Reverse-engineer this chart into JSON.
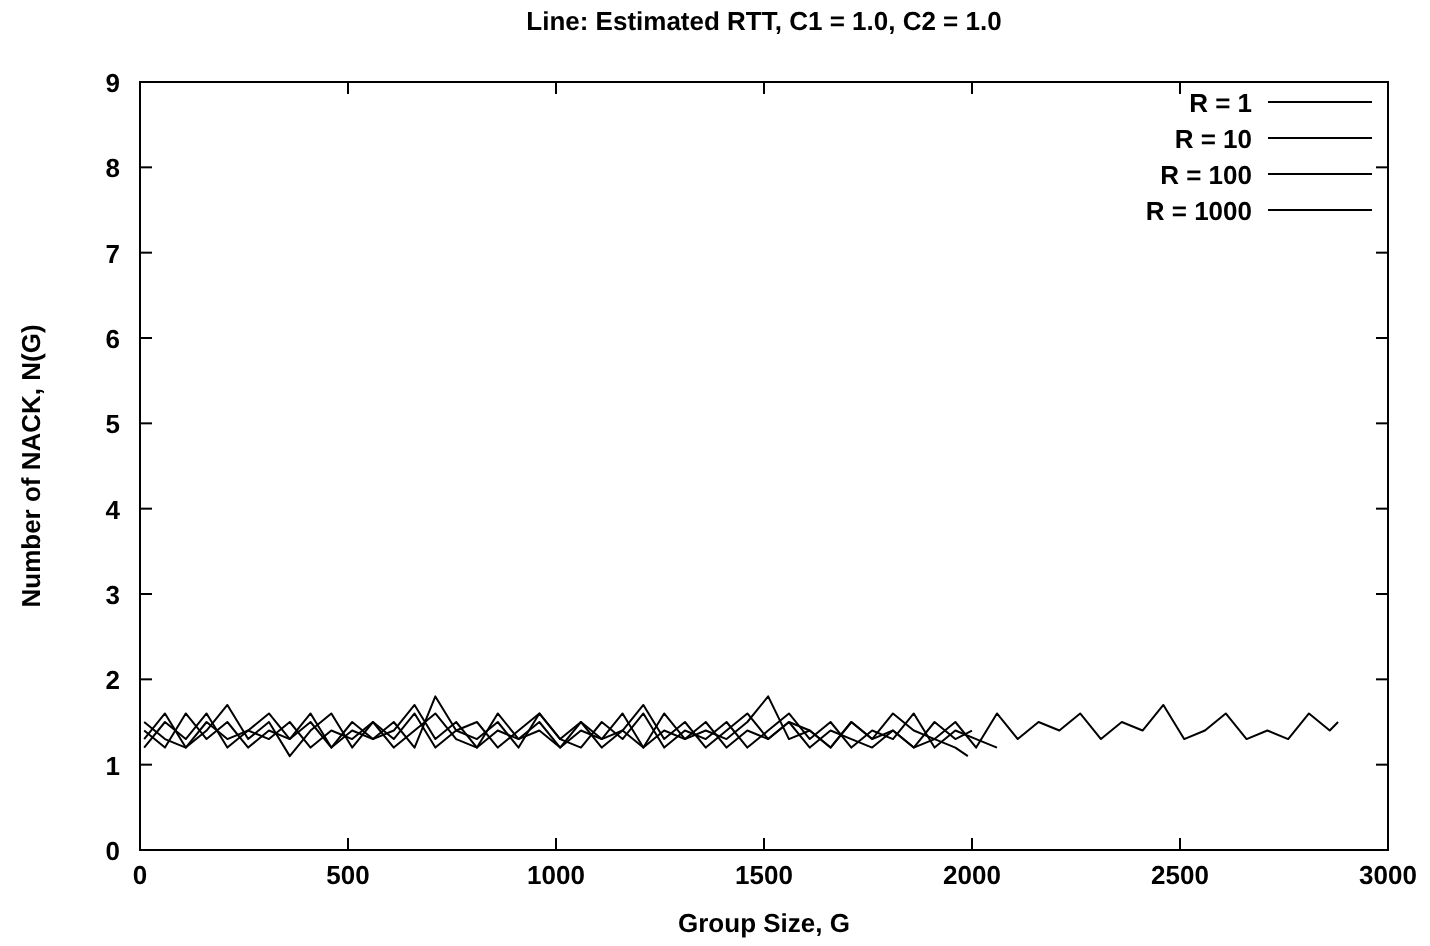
{
  "chart_data": {
    "type": "line",
    "title": "Line: Estimated RTT, C1 = 1.0, C2 = 1.0",
    "xlabel": "Group Size, G",
    "ylabel": "Number of NACK, N(G)",
    "xlim": [
      0,
      3000
    ],
    "xticks": [
      0,
      500,
      1000,
      1500,
      2000,
      2500,
      3000
    ],
    "ylim": [
      0,
      9
    ],
    "yticks": [
      0,
      1,
      2,
      3,
      4,
      5,
      6,
      7,
      8,
      9
    ],
    "grid": false,
    "legend": "top right",
    "marker": "none",
    "line_style": "solid",
    "series": [
      {
        "name": "R = 1",
        "color": "#000000",
        "x": [
          10,
          60,
          110,
          160,
          210,
          260,
          310,
          360,
          410,
          460,
          510,
          560,
          610,
          660,
          710,
          760,
          810,
          860,
          910,
          960,
          1010,
          1060,
          1110,
          1160,
          1210,
          1260,
          1310,
          1360,
          1410,
          1460,
          1510,
          1560,
          1610,
          1660,
          1710,
          1760,
          1810,
          1860,
          1910,
          1960,
          1990
        ],
        "values": [
          1.2,
          1.5,
          1.3,
          1.6,
          1.2,
          1.4,
          1.3,
          1.5,
          1.2,
          1.4,
          1.3,
          1.5,
          1.2,
          1.4,
          1.6,
          1.3,
          1.2,
          1.4,
          1.3,
          1.5,
          1.2,
          1.4,
          1.3,
          1.6,
          1.2,
          1.4,
          1.3,
          1.5,
          1.2,
          1.4,
          1.3,
          1.5,
          1.2,
          1.4,
          1.3,
          1.2,
          1.4,
          1.2,
          1.3,
          1.2,
          1.1
        ]
      },
      {
        "name": "R = 10",
        "color": "#000000",
        "x": [
          10,
          60,
          110,
          160,
          210,
          260,
          310,
          360,
          410,
          460,
          510,
          560,
          610,
          660,
          710,
          760,
          810,
          860,
          910,
          960,
          1010,
          1060,
          1110,
          1160,
          1210,
          1260,
          1310,
          1360,
          1410,
          1460,
          1510,
          1560,
          1610,
          1660,
          1710,
          1760,
          1810,
          1860,
          1910,
          1960,
          2000
        ],
        "values": [
          1.4,
          1.2,
          1.6,
          1.3,
          1.5,
          1.2,
          1.4,
          1.3,
          1.6,
          1.2,
          1.5,
          1.3,
          1.4,
          1.7,
          1.3,
          1.5,
          1.2,
          1.6,
          1.3,
          1.4,
          1.2,
          1.5,
          1.3,
          1.4,
          1.2,
          1.6,
          1.3,
          1.4,
          1.3,
          1.5,
          1.8,
          1.3,
          1.4,
          1.2,
          1.5,
          1.3,
          1.4,
          1.2,
          1.5,
          1.3,
          1.4
        ]
      },
      {
        "name": "R = 100",
        "color": "#000000",
        "x": [
          10,
          60,
          110,
          160,
          210,
          260,
          310,
          360,
          410,
          460,
          510,
          560,
          610,
          660,
          710,
          760,
          810,
          860,
          910,
          960,
          1010,
          1060,
          1110,
          1160,
          1210,
          1260,
          1310,
          1360,
          1410,
          1460,
          1510,
          1560,
          1610,
          1660,
          1710,
          1760,
          1810,
          1860,
          1910,
          1960,
          2010,
          2060
        ],
        "values": [
          1.3,
          1.6,
          1.2,
          1.4,
          1.7,
          1.3,
          1.5,
          1.1,
          1.4,
          1.6,
          1.2,
          1.5,
          1.3,
          1.6,
          1.2,
          1.4,
          1.5,
          1.2,
          1.4,
          1.6,
          1.3,
          1.2,
          1.5,
          1.3,
          1.6,
          1.2,
          1.4,
          1.3,
          1.5,
          1.2,
          1.4,
          1.6,
          1.3,
          1.5,
          1.2,
          1.4,
          1.3,
          1.6,
          1.2,
          1.4,
          1.3,
          1.2
        ]
      },
      {
        "name": "R = 1000",
        "color": "#000000",
        "x": [
          10,
          60,
          110,
          160,
          210,
          260,
          310,
          360,
          410,
          460,
          510,
          560,
          610,
          660,
          710,
          760,
          810,
          860,
          910,
          960,
          1010,
          1060,
          1110,
          1160,
          1210,
          1260,
          1310,
          1360,
          1410,
          1460,
          1510,
          1560,
          1610,
          1660,
          1710,
          1760,
          1810,
          1860,
          1910,
          1960,
          2010,
          2060,
          2110,
          2160,
          2210,
          2260,
          2310,
          2360,
          2410,
          2460,
          2510,
          2560,
          2610,
          2660,
          2710,
          2760,
          2810,
          2860,
          2880
        ],
        "values": [
          1.5,
          1.3,
          1.2,
          1.5,
          1.3,
          1.4,
          1.6,
          1.3,
          1.5,
          1.2,
          1.4,
          1.3,
          1.5,
          1.2,
          1.8,
          1.4,
          1.3,
          1.5,
          1.2,
          1.6,
          1.3,
          1.5,
          1.2,
          1.4,
          1.7,
          1.3,
          1.5,
          1.2,
          1.4,
          1.6,
          1.3,
          1.5,
          1.4,
          1.2,
          1.5,
          1.3,
          1.6,
          1.4,
          1.3,
          1.5,
          1.2,
          1.6,
          1.3,
          1.5,
          1.4,
          1.6,
          1.3,
          1.5,
          1.4,
          1.7,
          1.3,
          1.4,
          1.6,
          1.3,
          1.4,
          1.3,
          1.6,
          1.4,
          1.5
        ]
      }
    ]
  }
}
